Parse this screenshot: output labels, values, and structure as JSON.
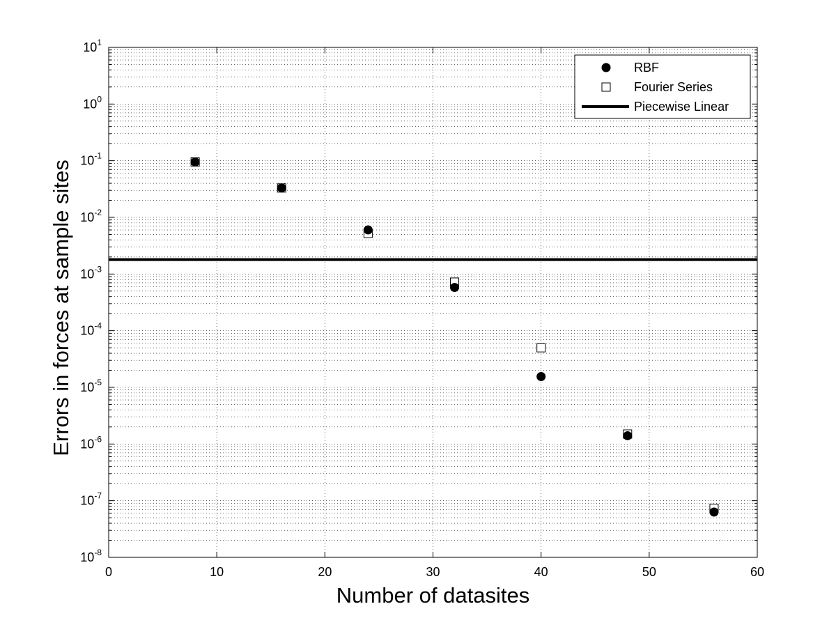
{
  "chart_data": {
    "type": "scatter",
    "title": "",
    "xlabel": "Number of datasites",
    "ylabel": "Errors in forces at sample sites",
    "xlim": [
      0,
      60
    ],
    "ylim": [
      1e-08,
      10
    ],
    "yscale": "log",
    "grid": "major and minor, dotted",
    "legend_position": "top-right",
    "x_ticks": [
      0,
      10,
      20,
      30,
      40,
      50,
      60
    ],
    "x_tick_labels": [
      "0",
      "10",
      "20",
      "30",
      "40",
      "50",
      "60"
    ],
    "y_tick_exponents": [
      -8,
      -7,
      -6,
      -5,
      -4,
      -3,
      -2,
      -1,
      0,
      1
    ],
    "y_tick_base": "10",
    "series": [
      {
        "name": "RBF",
        "marker": "filled-circle",
        "color": "#000000",
        "x": [
          8,
          16,
          24,
          32,
          40,
          48,
          56
        ],
        "y": [
          0.095,
          0.033,
          0.006,
          0.00058,
          1.55e-05,
          1.4e-06,
          6.3e-08
        ]
      },
      {
        "name": "Fourier Series",
        "marker": "open-square",
        "color": "#000000",
        "x": [
          8,
          16,
          24,
          32,
          40,
          48,
          56
        ],
        "y": [
          0.095,
          0.033,
          0.0052,
          0.00072,
          5e-05,
          1.5e-06,
          7.3e-08
        ]
      },
      {
        "name": "Piecewise Linear",
        "marker": "line",
        "color": "#000000",
        "x": [
          0,
          60
        ],
        "y": [
          0.0018,
          0.0018
        ]
      }
    ]
  }
}
